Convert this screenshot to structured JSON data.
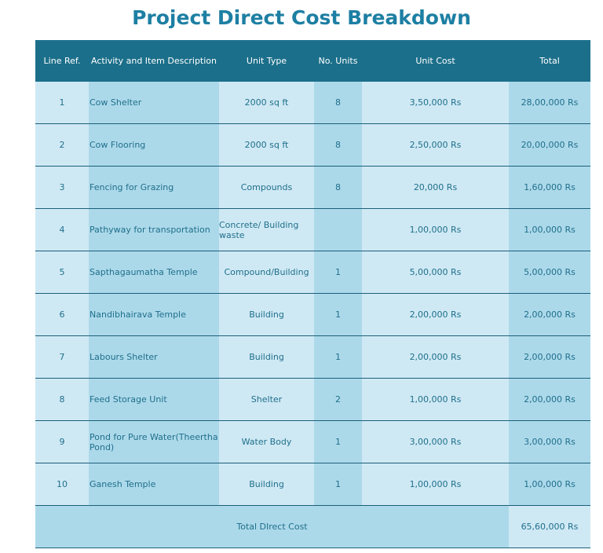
{
  "title": "Project Direct Cost Breakdown",
  "table": {
    "headers": [
      "Line Ref.",
      "Activity and Item Description",
      "Unit Type",
      "No. Units",
      "Unit Cost",
      "Total"
    ],
    "rows": [
      [
        "1",
        "Cow Shelter",
        "2000 sq ft",
        "8",
        "3,50,000 Rs",
        "28,00,000 Rs"
      ],
      [
        "2",
        "Cow Flooring",
        "2000 sq ft",
        "8",
        "2,50,000 Rs",
        "20,00,000 Rs"
      ],
      [
        "3",
        "Fencing for Grazing",
        "Compounds",
        "8",
        "20,000 Rs",
        "1,60,000 Rs"
      ],
      [
        "4",
        "Pathyway for transportation",
        "Concrete/ Building waste",
        null,
        "1,00,000 Rs",
        "1,00,000 Rs"
      ],
      [
        "5",
        "Sapthagaumatha Temple",
        "Compound/Building",
        "1",
        "5,00,000 Rs",
        "5,00,000 Rs"
      ],
      [
        "6",
        "Nandibhairava Temple",
        "Building",
        "1",
        "2,00,000 Rs",
        "2,00,000 Rs"
      ],
      [
        "7",
        "Labours Shelter",
        "Building",
        "1",
        "2,00,000 Rs",
        "2,00,000 Rs"
      ],
      [
        "8",
        "Feed Storage Unit",
        "Shelter",
        "2",
        "1,00,000 Rs",
        "2,00,000 Rs"
      ],
      [
        "9",
        "Pond for Pure Water(Theertha Pond)",
        "Water Body",
        "1",
        "3,00,000 Rs",
        "3,00,000 Rs"
      ],
      [
        "10",
        "Ganesh Temple",
        "Building",
        "1",
        "1,00,000 Rs",
        "1,00,000 Rs"
      ]
    ],
    "footer": {
      "label": "Total DIrect Cost",
      "total": "65,60,000 Rs"
    }
  }
}
